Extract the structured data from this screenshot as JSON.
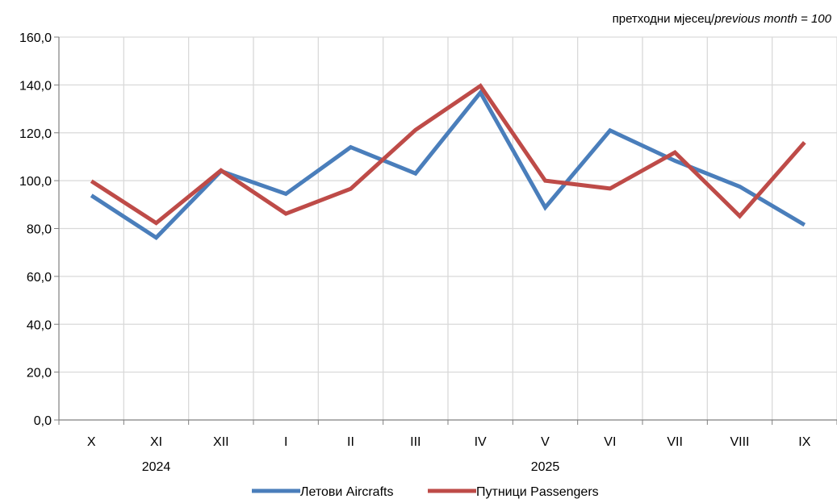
{
  "chart_data": {
    "type": "line",
    "note_prefix": "претходни мјесец/",
    "note_italic": "previous month = 100",
    "categories": [
      "X",
      "XI",
      "XII",
      "I",
      "II",
      "III",
      "IV",
      "V",
      "VI",
      "VII",
      "VIII",
      "IX"
    ],
    "year_groups": [
      {
        "label": "2024",
        "start": 0,
        "end": 2
      },
      {
        "label": "2025",
        "start": 3,
        "end": 11
      }
    ],
    "series": [
      {
        "name": "Летови Aircrafts",
        "color": "#4a7ebb",
        "values": [
          93.8,
          76.2,
          104.0,
          94.5,
          114.0,
          103.0,
          136.8,
          88.8,
          121.0,
          108.3,
          97.5,
          81.5
        ]
      },
      {
        "name": "Путници Passengers",
        "color": "#be4b48",
        "values": [
          99.8,
          82.3,
          104.3,
          86.2,
          96.6,
          121.2,
          139.6,
          100.0,
          96.7,
          111.8,
          85.2,
          116.0
        ]
      }
    ],
    "yticks": [
      "0,0",
      "20,0",
      "40,0",
      "60,0",
      "80,0",
      "100,0",
      "120,0",
      "140,0",
      "160,0"
    ],
    "ylim": [
      0,
      160
    ],
    "grid": true,
    "legend_position": "bottom"
  }
}
